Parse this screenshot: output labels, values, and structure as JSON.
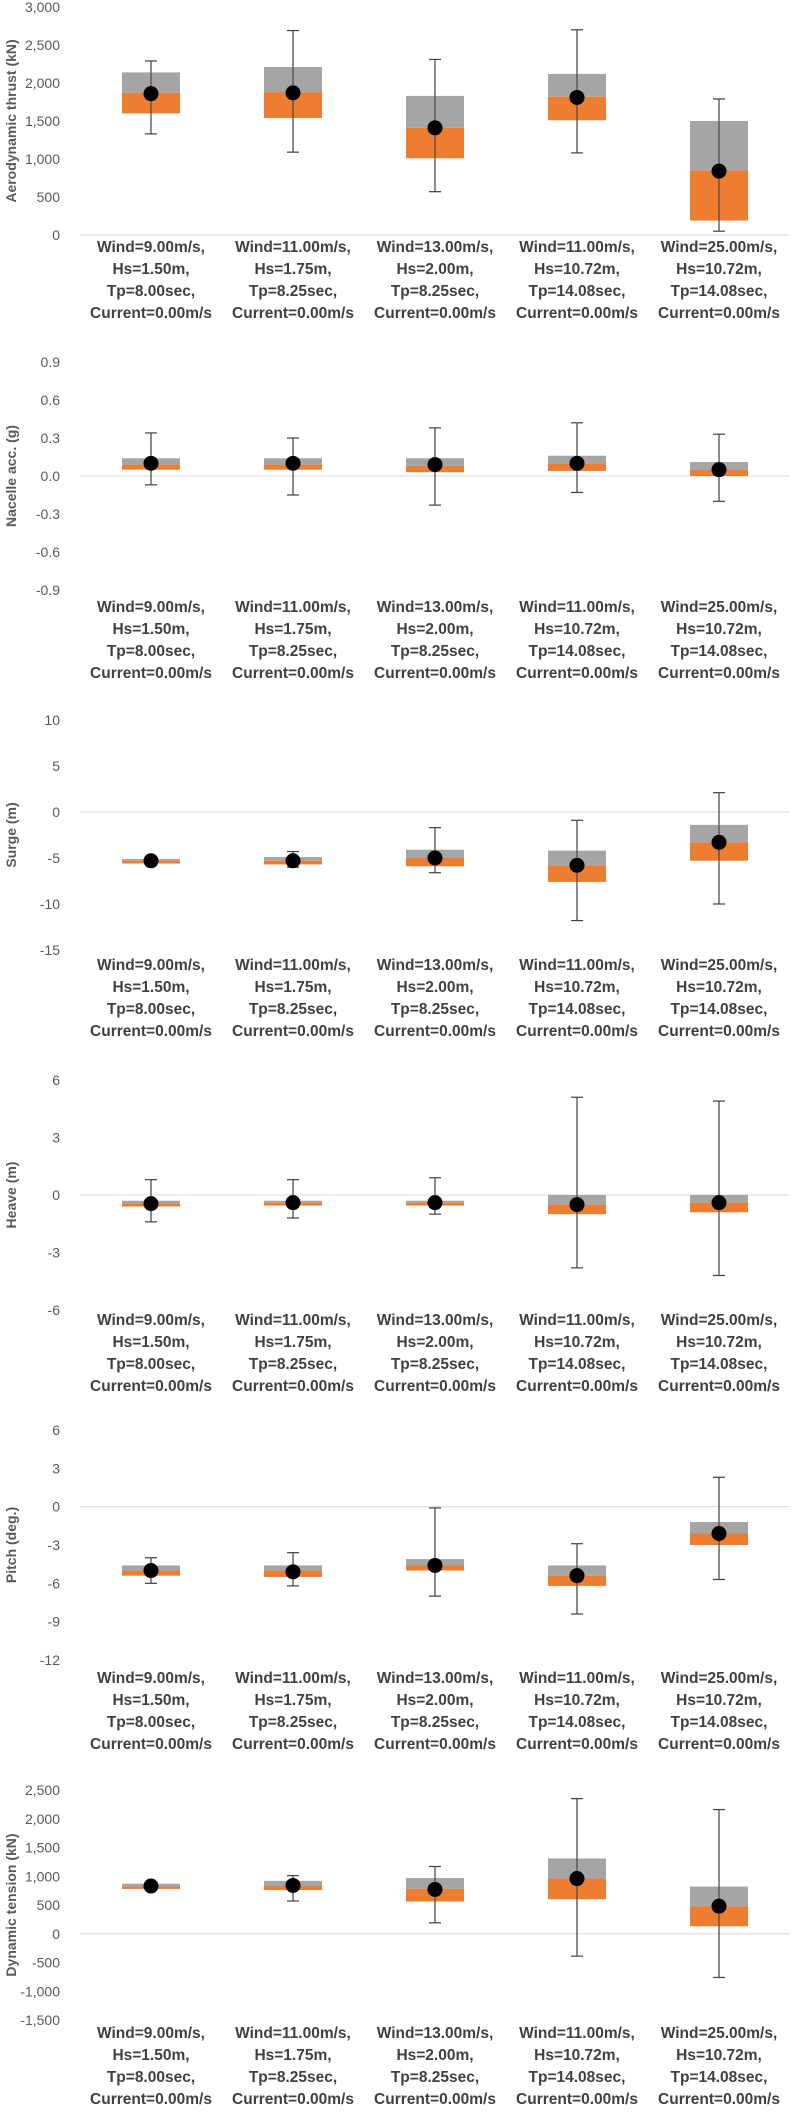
{
  "colors": {
    "upper_box": "#a5a5a5",
    "lower_box": "#ed7d31",
    "marker": "#000000",
    "whisker": "#404040",
    "gridline": "#d9d9d9",
    "text": "#595959"
  },
  "chart_data": [
    {
      "type": "box",
      "title": "",
      "ylabel": "Aerodynamic thrust (kN)",
      "ylim": [
        0,
        3000
      ],
      "yticks": [
        0,
        500,
        1000,
        1500,
        2000,
        2500,
        3000
      ],
      "ytick_labels": [
        "0",
        "500",
        "1,000",
        "1,500",
        "2,000",
        "2,500",
        "3,000"
      ],
      "grid": false,
      "categories": [
        [
          "Wind=9.00m/s,",
          "Hs=1.50m,",
          "Tp=8.00sec,",
          "Current=0.00m/s"
        ],
        [
          "Wind=11.00m/s,",
          "Hs=1.75m,",
          "Tp=8.25sec,",
          "Current=0.00m/s"
        ],
        [
          "Wind=13.00m/s,",
          "Hs=2.00m,",
          "Tp=8.25sec,",
          "Current=0.00m/s"
        ],
        [
          "Wind=11.00m/s,",
          "Hs=10.72m,",
          "Tp=14.08sec,",
          "Current=0.00m/s"
        ],
        [
          "Wind=25.00m/s,",
          "Hs=10.72m,",
          "Tp=14.08sec,",
          "Current=0.00m/s"
        ]
      ],
      "boxes": [
        {
          "min": 1330,
          "q1": 1600,
          "median": 1870,
          "q3": 2140,
          "max": 2290,
          "mean": 1860
        },
        {
          "min": 1090,
          "q1": 1540,
          "median": 1880,
          "q3": 2210,
          "max": 2690,
          "mean": 1870
        },
        {
          "min": 570,
          "q1": 1010,
          "median": 1410,
          "q3": 1830,
          "max": 2310,
          "mean": 1410
        },
        {
          "min": 1080,
          "q1": 1510,
          "median": 1820,
          "q3": 2120,
          "max": 2700,
          "mean": 1810
        },
        {
          "min": 50,
          "q1": 190,
          "median": 850,
          "q3": 1500,
          "max": 1790,
          "mean": 840
        }
      ]
    },
    {
      "type": "box",
      "title": "",
      "ylabel": "Nacelle acc. (g)",
      "ylim": [
        -0.9,
        0.9
      ],
      "yticks": [
        -0.9,
        -0.6,
        -0.3,
        0.0,
        0.3,
        0.6,
        0.9
      ],
      "ytick_labels": [
        "-0.9",
        "-0.6",
        "-0.3",
        "0.0",
        "0.3",
        "0.6",
        "0.9"
      ],
      "grid": false,
      "categories": [
        [
          "Wind=9.00m/s,",
          "Hs=1.50m,",
          "Tp=8.00sec,",
          "Current=0.00m/s"
        ],
        [
          "Wind=11.00m/s,",
          "Hs=1.75m,",
          "Tp=8.25sec,",
          "Current=0.00m/s"
        ],
        [
          "Wind=13.00m/s,",
          "Hs=2.00m,",
          "Tp=8.25sec,",
          "Current=0.00m/s"
        ],
        [
          "Wind=11.00m/s,",
          "Hs=10.72m,",
          "Tp=14.08sec,",
          "Current=0.00m/s"
        ],
        [
          "Wind=25.00m/s,",
          "Hs=10.72m,",
          "Tp=14.08sec,",
          "Current=0.00m/s"
        ]
      ],
      "boxes": [
        {
          "min": -0.07,
          "q1": 0.05,
          "median": 0.09,
          "q3": 0.14,
          "max": 0.34,
          "mean": 0.1
        },
        {
          "min": -0.15,
          "q1": 0.05,
          "median": 0.09,
          "q3": 0.14,
          "max": 0.3,
          "mean": 0.1
        },
        {
          "min": -0.23,
          "q1": 0.03,
          "median": 0.08,
          "q3": 0.14,
          "max": 0.38,
          "mean": 0.09
        },
        {
          "min": -0.13,
          "q1": 0.04,
          "median": 0.1,
          "q3": 0.16,
          "max": 0.42,
          "mean": 0.1
        },
        {
          "min": -0.2,
          "q1": 0.0,
          "median": 0.05,
          "q3": 0.11,
          "max": 0.33,
          "mean": 0.05
        }
      ]
    },
    {
      "type": "box",
      "title": "",
      "ylabel": "Surge (m)",
      "ylim": [
        -15,
        10
      ],
      "yticks": [
        -15,
        -10,
        -5,
        0,
        5,
        10
      ],
      "ytick_labels": [
        "-15",
        "-10",
        "-5",
        "0",
        "5",
        "10"
      ],
      "grid": false,
      "categories": [
        [
          "Wind=9.00m/s,",
          "Hs=1.50m,",
          "Tp=8.00sec,",
          "Current=0.00m/s"
        ],
        [
          "Wind=11.00m/s,",
          "Hs=1.75m,",
          "Tp=8.25sec,",
          "Current=0.00m/s"
        ],
        [
          "Wind=13.00m/s,",
          "Hs=2.00m,",
          "Tp=8.25sec,",
          "Current=0.00m/s"
        ],
        [
          "Wind=11.00m/s,",
          "Hs=10.72m,",
          "Tp=14.08sec,",
          "Current=0.00m/s"
        ],
        [
          "Wind=25.00m/s,",
          "Hs=10.72m,",
          "Tp=14.08sec,",
          "Current=0.00m/s"
        ]
      ],
      "boxes": [
        {
          "min": -5.8,
          "q1": -5.6,
          "median": -5.3,
          "q3": -5.1,
          "max": -4.9,
          "mean": -5.3
        },
        {
          "min": -6.0,
          "q1": -5.7,
          "median": -5.3,
          "q3": -4.9,
          "max": -4.3,
          "mean": -5.3
        },
        {
          "min": -6.6,
          "q1": -5.9,
          "median": -5.0,
          "q3": -4.1,
          "max": -1.7,
          "mean": -5.0
        },
        {
          "min": -11.8,
          "q1": -7.6,
          "median": -5.8,
          "q3": -4.2,
          "max": -0.9,
          "mean": -5.8
        },
        {
          "min": -10.0,
          "q1": -5.3,
          "median": -3.3,
          "q3": -1.4,
          "max": 2.1,
          "mean": -3.3
        }
      ]
    },
    {
      "type": "box",
      "title": "",
      "ylabel": "Heave (m)",
      "ylim": [
        -6,
        6
      ],
      "yticks": [
        -6,
        -3,
        0,
        3,
        6
      ],
      "ytick_labels": [
        "-6",
        "-3",
        "0",
        "3",
        "6"
      ],
      "grid": false,
      "categories": [
        [
          "Wind=9.00m/s,",
          "Hs=1.50m,",
          "Tp=8.00sec,",
          "Current=0.00m/s"
        ],
        [
          "Wind=11.00m/s,",
          "Hs=1.75m,",
          "Tp=8.25sec,",
          "Current=0.00m/s"
        ],
        [
          "Wind=13.00m/s,",
          "Hs=2.00m,",
          "Tp=8.25sec,",
          "Current=0.00m/s"
        ],
        [
          "Wind=11.00m/s,",
          "Hs=10.72m,",
          "Tp=14.08sec,",
          "Current=0.00m/s"
        ],
        [
          "Wind=25.00m/s,",
          "Hs=10.72m,",
          "Tp=14.08sec,",
          "Current=0.00m/s"
        ]
      ],
      "boxes": [
        {
          "min": -1.4,
          "q1": -0.6,
          "median": -0.45,
          "q3": -0.3,
          "max": 0.8,
          "mean": -0.45
        },
        {
          "min": -1.2,
          "q1": -0.55,
          "median": -0.4,
          "q3": -0.3,
          "max": 0.8,
          "mean": -0.4
        },
        {
          "min": -1.0,
          "q1": -0.55,
          "median": -0.4,
          "q3": -0.3,
          "max": 0.9,
          "mean": -0.4
        },
        {
          "min": -3.8,
          "q1": -1.0,
          "median": -0.5,
          "q3": 0.0,
          "max": 5.1,
          "mean": -0.5
        },
        {
          "min": -4.2,
          "q1": -0.9,
          "median": -0.4,
          "q3": 0.0,
          "max": 4.9,
          "mean": -0.4
        }
      ]
    },
    {
      "type": "box",
      "title": "",
      "ylabel": "Pitch (deg.)",
      "ylim": [
        -12,
        6
      ],
      "yticks": [
        -12,
        -9,
        -6,
        -3,
        0,
        3,
        6
      ],
      "ytick_labels": [
        "-12",
        "-9",
        "-6",
        "-3",
        "0",
        "3",
        "6"
      ],
      "grid": false,
      "categories": [
        [
          "Wind=9.00m/s,",
          "Hs=1.50m,",
          "Tp=8.00sec,",
          "Current=0.00m/s"
        ],
        [
          "Wind=11.00m/s,",
          "Hs=1.75m,",
          "Tp=8.25sec,",
          "Current=0.00m/s"
        ],
        [
          "Wind=13.00m/s,",
          "Hs=2.00m,",
          "Tp=8.25sec,",
          "Current=0.00m/s"
        ],
        [
          "Wind=11.00m/s,",
          "Hs=10.72m,",
          "Tp=14.08sec,",
          "Current=0.00m/s"
        ],
        [
          "Wind=25.00m/s,",
          "Hs=10.72m,",
          "Tp=14.08sec,",
          "Current=0.00m/s"
        ]
      ],
      "boxes": [
        {
          "min": -6.0,
          "q1": -5.4,
          "median": -5.0,
          "q3": -4.6,
          "max": -4.0,
          "mean": -5.0
        },
        {
          "min": -6.2,
          "q1": -5.5,
          "median": -5.0,
          "q3": -4.6,
          "max": -3.6,
          "mean": -5.1
        },
        {
          "min": -7.0,
          "q1": -5.0,
          "median": -4.6,
          "q3": -4.1,
          "max": -0.1,
          "mean": -4.6
        },
        {
          "min": -8.4,
          "q1": -6.2,
          "median": -5.4,
          "q3": -4.6,
          "max": -2.9,
          "mean": -5.4
        },
        {
          "min": -5.7,
          "q1": -3.0,
          "median": -2.1,
          "q3": -1.2,
          "max": 2.3,
          "mean": -2.1
        }
      ]
    },
    {
      "type": "box",
      "title": "",
      "ylabel": "Dynamic tension (kN)",
      "ylim": [
        -1500,
        2500
      ],
      "yticks": [
        -1500,
        -1000,
        -500,
        0,
        500,
        1000,
        1500,
        2000,
        2500
      ],
      "ytick_labels": [
        "-1,500",
        "-1,000",
        "-500",
        "0",
        "500",
        "1,000",
        "1,500",
        "2,000",
        "2,500"
      ],
      "grid": false,
      "categories": [
        [
          "Wind=9.00m/s,",
          "Hs=1.50m,",
          "Tp=8.00sec,",
          "Current=0.00m/s"
        ],
        [
          "Wind=11.00m/s,",
          "Hs=1.75m,",
          "Tp=8.25sec,",
          "Current=0.00m/s"
        ],
        [
          "Wind=13.00m/s,",
          "Hs=2.00m,",
          "Tp=8.25sec,",
          "Current=0.00m/s"
        ],
        [
          "Wind=11.00m/s,",
          "Hs=10.72m,",
          "Tp=14.08sec,",
          "Current=0.00m/s"
        ],
        [
          "Wind=25.00m/s,",
          "Hs=10.72m,",
          "Tp=14.08sec,",
          "Current=0.00m/s"
        ]
      ],
      "boxes": [
        {
          "min": 760,
          "q1": 780,
          "median": 820,
          "q3": 870,
          "max": 890,
          "mean": 830
        },
        {
          "min": 570,
          "q1": 760,
          "median": 830,
          "q3": 920,
          "max": 1010,
          "mean": 840
        },
        {
          "min": 190,
          "q1": 560,
          "median": 780,
          "q3": 970,
          "max": 1170,
          "mean": 770
        },
        {
          "min": -390,
          "q1": 600,
          "median": 960,
          "q3": 1310,
          "max": 2350,
          "mean": 960
        },
        {
          "min": -760,
          "q1": 130,
          "median": 480,
          "q3": 820,
          "max": 2160,
          "mean": 480
        }
      ]
    }
  ]
}
